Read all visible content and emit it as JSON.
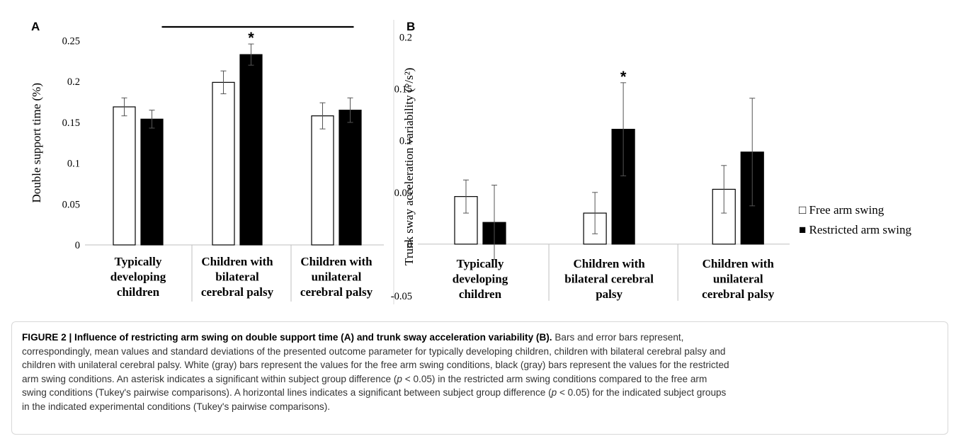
{
  "chart_data": [
    {
      "type": "bar",
      "panel_label": "A",
      "ylabel": "Double support time (%)",
      "ylim": [
        0,
        0.25
      ],
      "yticks": [
        "0",
        "0.05",
        "0.1",
        "0.15",
        "0.2",
        "0.25"
      ],
      "categories": [
        [
          "Typically",
          "developing",
          "children"
        ],
        [
          "Children with",
          "bilateral",
          "cerebral palsy"
        ],
        [
          "Children with",
          "unilateral",
          "cerebral palsy"
        ]
      ],
      "series": [
        {
          "name": "Free arm swing",
          "color": "#ffffff",
          "values": [
            0.169,
            0.199,
            0.158
          ],
          "errors": [
            0.011,
            0.014,
            0.016
          ]
        },
        {
          "name": "Restricted arm swing",
          "color": "#000000",
          "values": [
            0.154,
            0.233,
            0.165
          ],
          "errors": [
            0.011,
            0.013,
            0.015
          ]
        }
      ],
      "annotations": {
        "asterisk": "*",
        "asterisk_bar": [
          1,
          1
        ],
        "significance_line": [
          0,
          2
        ]
      }
    },
    {
      "type": "bar",
      "panel_label": "B",
      "ylabel": "Trunk sway acceleration variability (°/s²)",
      "ylim": [
        -0.05,
        0.2
      ],
      "yticks": [
        "-0.05",
        "0",
        "0.05",
        "0.1",
        "0.15",
        "0.2"
      ],
      "categories": [
        [
          "Typically",
          "developing",
          "children"
        ],
        [
          "Children with",
          "bilateral cerebral",
          "palsy"
        ],
        [
          "Children with",
          "unilateral",
          "cerebral palsy"
        ]
      ],
      "series": [
        {
          "name": "Free arm swing",
          "color": "#ffffff",
          "values": [
            0.046,
            0.03,
            0.053
          ],
          "errors": [
            0.016,
            0.02,
            0.023
          ]
        },
        {
          "name": "Restricted arm swing",
          "color": "#000000",
          "values": [
            0.021,
            0.111,
            0.089
          ],
          "errors": [
            0.036,
            0.045,
            0.052
          ]
        }
      ],
      "legend": {
        "placement": "right",
        "entries": [
          "□ Free arm swing",
          "■ Restricted arm swing"
        ]
      },
      "annotations": {
        "asterisk": "*",
        "asterisk_bar": [
          1,
          1
        ]
      }
    }
  ],
  "caption": {
    "lead": "FIGURE 2 | Influence of restricting arm swing on double support time (A) and trunk sway acceleration variability (B).",
    "lines": [
      " Bars and error bars represent,",
      "correspondingly, mean values and standard deviations of the presented outcome parameter for typically developing children, children with bilateral cerebral palsy and",
      "children with unilateral cerebral palsy. White (gray) bars represent the values for the free arm swing conditions, black (gray) bars represent the values for the restricted",
      "arm swing conditions. An asterisk indicates a significant within subject group difference (",
      "p",
      " < 0.05) in the restricted arm swing conditions compared to the free arm",
      "swing conditions (Tukey's pairwise comparisons). A horizontal lines indicates a significant between subject group difference (",
      "p",
      " < 0.05) for the indicated subject groups",
      "in the indicated experimental conditions (Tukey's pairwise comparisons)."
    ]
  }
}
